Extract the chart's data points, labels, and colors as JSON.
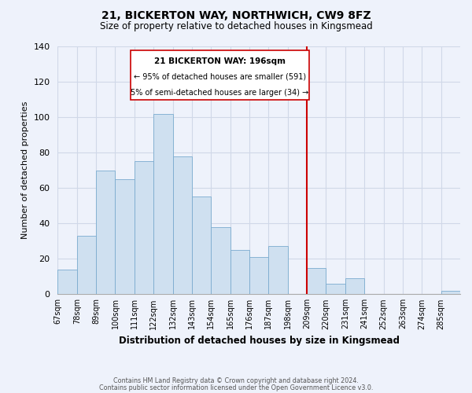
{
  "title": "21, BICKERTON WAY, NORTHWICH, CW9 8FZ",
  "subtitle": "Size of property relative to detached houses in Kingsmead",
  "xlabel": "Distribution of detached houses by size in Kingsmead",
  "ylabel": "Number of detached properties",
  "bar_color": "#cfe0f0",
  "bar_edge_color": "#7aabcf",
  "bin_labels": [
    "67sqm",
    "78sqm",
    "89sqm",
    "100sqm",
    "111sqm",
    "122sqm",
    "132sqm",
    "143sqm",
    "154sqm",
    "165sqm",
    "176sqm",
    "187sqm",
    "198sqm",
    "209sqm",
    "220sqm",
    "231sqm",
    "241sqm",
    "252sqm",
    "263sqm",
    "274sqm",
    "285sqm"
  ],
  "bar_heights": [
    14,
    33,
    70,
    65,
    75,
    102,
    78,
    55,
    38,
    25,
    21,
    27,
    0,
    15,
    6,
    9,
    0,
    0,
    0,
    0,
    2
  ],
  "ylim": [
    0,
    140
  ],
  "yticks": [
    0,
    20,
    40,
    60,
    80,
    100,
    120,
    140
  ],
  "annotation_title": "21 BICKERTON WAY: 196sqm",
  "annotation_line1": "← 95% of detached houses are smaller (591)",
  "annotation_line2": "5% of semi-detached houses are larger (34) →",
  "footer_line1": "Contains HM Land Registry data © Crown copyright and database right 2024.",
  "footer_line2": "Contains public sector information licensed under the Open Government Licence v3.0.",
  "background_color": "#eef2fb",
  "grid_color": "#d0d8e8",
  "annotation_box_color": "#ffffff",
  "annotation_box_edge": "#cc0000",
  "ref_line_color": "#cc0000",
  "ref_line_bin_index": 12
}
